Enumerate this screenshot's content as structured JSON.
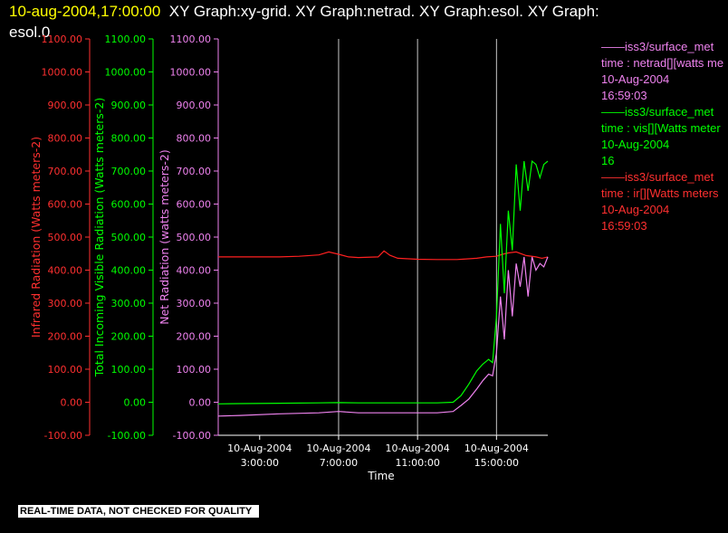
{
  "header": {
    "timestamp": "10-aug-2004,17:00:00",
    "line1": "XY Graph:xy-grid.  XY Graph:netrad.  XY Graph:esol.  XY Graph:",
    "line2": "esol.0"
  },
  "footer": {
    "notice": "REAL-TIME DATA, NOT CHECKED FOR QUALITY"
  },
  "legend": [
    {
      "color": "#ee82ee",
      "source": "iss3/surface_met",
      "desc": "time : netrad[][watts me",
      "date": "10-Aug-2004",
      "time": "16:59:03"
    },
    {
      "color": "#00ff00",
      "source": "iss3/surface_met",
      "desc": "time : vis[][Watts meter",
      "date": "10-Aug-2004",
      "time": "16"
    },
    {
      "color": "#ff0000",
      "source": "iss3/surface_met",
      "desc": "time : ir[][Watts meters",
      "date": "10-Aug-2004",
      "time": "16:59:03"
    }
  ],
  "chart_data": {
    "type": "line",
    "xlabel": "Time",
    "x_ticks": [
      {
        "label_date": "10-Aug-2004",
        "label_time": "3:00:00",
        "hour": 3
      },
      {
        "label_date": "10-Aug-2004",
        "label_time": "7:00:00",
        "hour": 7
      },
      {
        "label_date": "10-Aug-2004",
        "label_time": "11:00:00",
        "hour": 11
      },
      {
        "label_date": "10-Aug-2004",
        "label_time": "15:00:00",
        "hour": 15
      }
    ],
    "xlim_hours": [
      0.9,
      17.6
    ],
    "axes": [
      {
        "id": "ir",
        "label": "Infrared Radiation (Watts meters-2)",
        "color": "#ff3030",
        "ylim": [
          -100,
          1100
        ],
        "ticks": [
          "-100.00",
          "0.00",
          "100.00",
          "200.00",
          "300.00",
          "400.00",
          "500.00",
          "600.00",
          "700.00",
          "800.00",
          "900.00",
          "1000.00",
          "1100.00"
        ]
      },
      {
        "id": "vis",
        "label": "Total Incoming Visible Radiation (Watts meters-2)",
        "color": "#00ff00",
        "ylim": [
          -100,
          1100
        ],
        "ticks": [
          "-100.00",
          "0.00",
          "100.00",
          "200.00",
          "300.00",
          "400.00",
          "500.00",
          "600.00",
          "700.00",
          "800.00",
          "900.00",
          "1000.00",
          "1100.00"
        ]
      },
      {
        "id": "net",
        "label": "Net Radiation (watts meters-2)",
        "color": "#ee82ee",
        "ylim": [
          -100,
          1100
        ],
        "ticks": [
          "-100.00",
          "0.00",
          "100.00",
          "200.00",
          "300.00",
          "400.00",
          "500.00",
          "600.00",
          "700.00",
          "800.00",
          "900.00",
          "1000.00",
          "1100.00"
        ]
      }
    ],
    "series": [
      {
        "name": "ir",
        "color": "#ff2020",
        "x": [
          0.9,
          2,
          3,
          4,
          5,
          6,
          6.5,
          7,
          7.5,
          8,
          9,
          9.3,
          9.6,
          10,
          11,
          12,
          13,
          14,
          14.5,
          15,
          15.3,
          15.6,
          16,
          16.5,
          17,
          17.3,
          17.6
        ],
        "y": [
          440,
          440,
          440,
          440,
          442,
          446,
          455,
          448,
          440,
          438,
          440,
          458,
          445,
          436,
          433,
          432,
          432,
          436,
          440,
          442,
          448,
          452,
          455,
          444,
          440,
          436,
          440
        ]
      },
      {
        "name": "vis",
        "color": "#00ff00",
        "x": [
          0.9,
          2,
          4,
          6,
          7,
          8,
          10,
          11,
          12,
          12.8,
          13.2,
          13.6,
          14,
          14.3,
          14.6,
          14.8,
          15,
          15.2,
          15.4,
          15.6,
          15.8,
          16,
          16.2,
          16.4,
          16.6,
          16.8,
          17,
          17.2,
          17.4,
          17.6
        ],
        "y": [
          -5,
          -4,
          -3,
          -2,
          -1,
          -2,
          -2,
          -2,
          -2,
          0,
          20,
          55,
          95,
          115,
          130,
          120,
          260,
          540,
          330,
          580,
          460,
          720,
          580,
          730,
          640,
          730,
          720,
          680,
          720,
          730
        ]
      },
      {
        "name": "net",
        "color": "#ee82ee",
        "x": [
          0.9,
          2,
          4,
          6,
          7,
          8,
          10,
          11,
          12,
          12.8,
          13.2,
          13.6,
          14,
          14.3,
          14.6,
          14.8,
          15,
          15.2,
          15.4,
          15.6,
          15.8,
          16,
          16.2,
          16.4,
          16.6,
          16.8,
          17,
          17.2,
          17.4,
          17.6
        ],
        "y": [
          -42,
          -40,
          -35,
          -32,
          -28,
          -32,
          -32,
          -32,
          -32,
          -28,
          -10,
          10,
          40,
          65,
          85,
          80,
          150,
          320,
          190,
          400,
          260,
          420,
          350,
          440,
          320,
          440,
          400,
          420,
          410,
          440
        ]
      }
    ]
  }
}
